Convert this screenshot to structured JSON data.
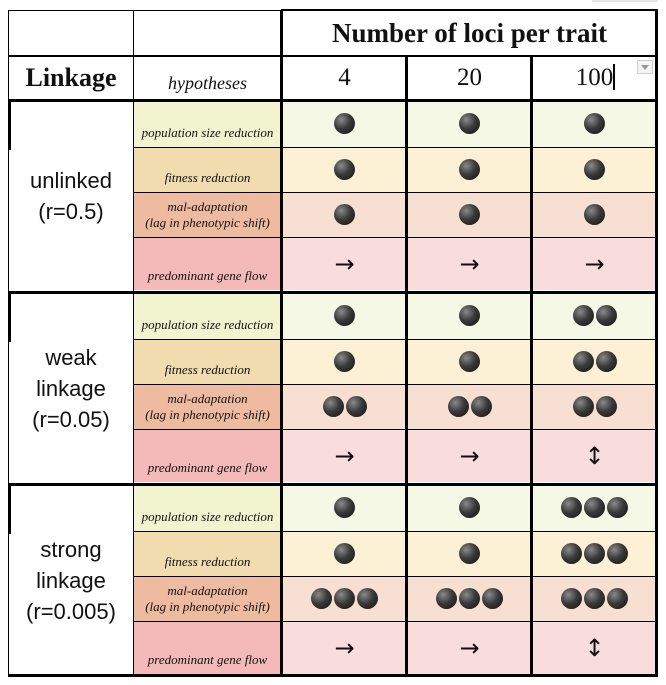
{
  "header": {
    "title": "Number of loci per trait",
    "linkage_label": "Linkage",
    "hypotheses_label": "hypotheses",
    "loci": [
      "4",
      "20",
      "100"
    ]
  },
  "groups": [
    {
      "label_lines": [
        "unlinked",
        "(r=0.5)"
      ],
      "rows": [
        {
          "hypothesis": [
            "population size reduction"
          ],
          "kind": "pop",
          "values": [
            {
              "dots": 1
            },
            {
              "dots": 1
            },
            {
              "dots": 1
            }
          ]
        },
        {
          "hypothesis": [
            "fitness reduction"
          ],
          "kind": "fit",
          "values": [
            {
              "dots": 1
            },
            {
              "dots": 1
            },
            {
              "dots": 1
            }
          ]
        },
        {
          "hypothesis": [
            "mal-adaptation",
            "(lag in phenotypic shift)"
          ],
          "kind": "mal",
          "values": [
            {
              "dots": 1
            },
            {
              "dots": 1
            },
            {
              "dots": 1
            }
          ]
        },
        {
          "hypothesis": [
            "predominant gene flow"
          ],
          "kind": "gene",
          "values": [
            {
              "arrow": "→"
            },
            {
              "arrow": "→"
            },
            {
              "arrow": "→"
            }
          ]
        }
      ]
    },
    {
      "label_lines": [
        "weak",
        "linkage",
        "(r=0.05)"
      ],
      "rows": [
        {
          "hypothesis": [
            "population size reduction"
          ],
          "kind": "pop",
          "values": [
            {
              "dots": 1
            },
            {
              "dots": 1
            },
            {
              "dots": 2
            }
          ]
        },
        {
          "hypothesis": [
            "fitness reduction"
          ],
          "kind": "fit",
          "values": [
            {
              "dots": 1
            },
            {
              "dots": 1
            },
            {
              "dots": 2
            }
          ]
        },
        {
          "hypothesis": [
            "mal-adaptation",
            "(lag in phenotypic shift)"
          ],
          "kind": "mal",
          "values": [
            {
              "dots": 2
            },
            {
              "dots": 2
            },
            {
              "dots": 2
            }
          ]
        },
        {
          "hypothesis": [
            "predominant gene flow"
          ],
          "kind": "gene",
          "values": [
            {
              "arrow": "→"
            },
            {
              "arrow": "→"
            },
            {
              "arrow": "↕"
            }
          ]
        }
      ]
    },
    {
      "label_lines": [
        "strong",
        "linkage",
        "(r=0.005)"
      ],
      "rows": [
        {
          "hypothesis": [
            "population size reduction"
          ],
          "kind": "pop",
          "values": [
            {
              "dots": 1
            },
            {
              "dots": 1
            },
            {
              "dots": 3
            }
          ]
        },
        {
          "hypothesis": [
            "fitness reduction"
          ],
          "kind": "fit",
          "values": [
            {
              "dots": 1
            },
            {
              "dots": 1
            },
            {
              "dots": 3
            }
          ]
        },
        {
          "hypothesis": [
            "mal-adaptation",
            "(lag in phenotypic shift)"
          ],
          "kind": "mal",
          "values": [
            {
              "dots": 3
            },
            {
              "dots": 3
            },
            {
              "dots": 3
            }
          ]
        },
        {
          "hypothesis": [
            "predominant gene flow"
          ],
          "kind": "gene",
          "values": [
            {
              "arrow": "→"
            },
            {
              "arrow": "→"
            },
            {
              "arrow": "↕"
            }
          ]
        }
      ]
    }
  ],
  "colors": {
    "grid": "#000000",
    "pop_fill": "#f6f8e6",
    "fit_fill": "#fdf1d5",
    "mal_fill": "#f7e0d2",
    "gene_fill": "#f9dcdc",
    "dot": "#1a1a1a"
  },
  "icons": {
    "dot": "filled-circle",
    "flow": "arrow",
    "menu": "chevron-down-icon"
  }
}
